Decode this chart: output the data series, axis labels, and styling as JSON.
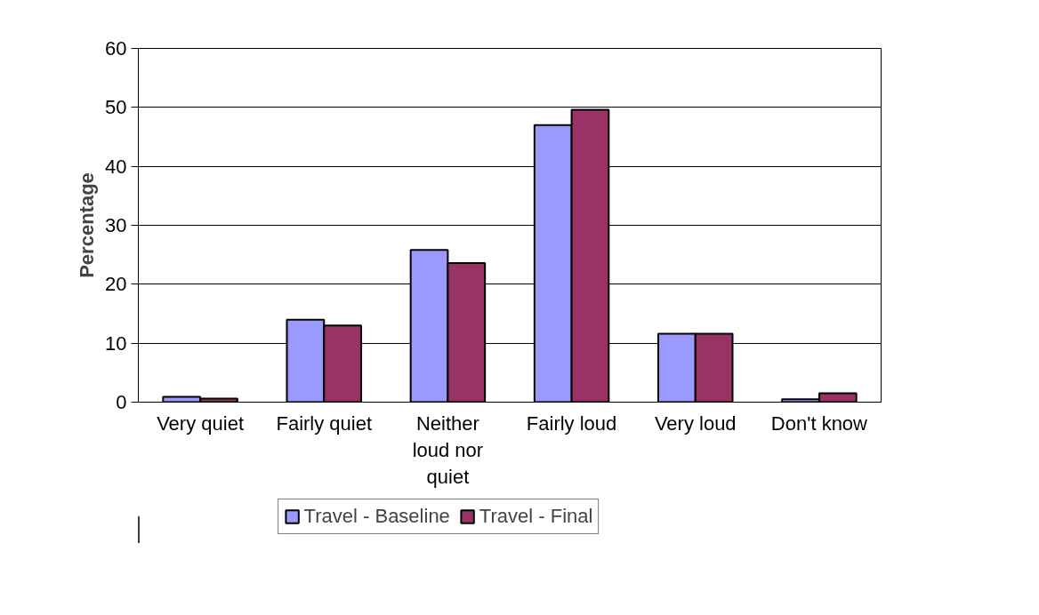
{
  "chart_data": {
    "type": "bar",
    "ylabel": "Percentage",
    "categories": [
      "Very quiet",
      "Fairly quiet",
      "Neither loud nor quiet",
      "Fairly loud",
      "Very loud",
      "Don't know"
    ],
    "series": [
      {
        "name": "Travel - Baseline",
        "color": "#9999ff",
        "values": [
          0.9,
          14.0,
          25.8,
          47.0,
          11.6,
          0.5
        ]
      },
      {
        "name": "Travel - Final",
        "color": "#993366",
        "values": [
          0.6,
          13.0,
          23.6,
          49.6,
          11.6,
          1.5
        ]
      }
    ],
    "ylim": [
      0,
      60
    ],
    "yticks": [
      0,
      10,
      20,
      30,
      40,
      50,
      60
    ],
    "grid": "y",
    "legend": "bottom"
  }
}
